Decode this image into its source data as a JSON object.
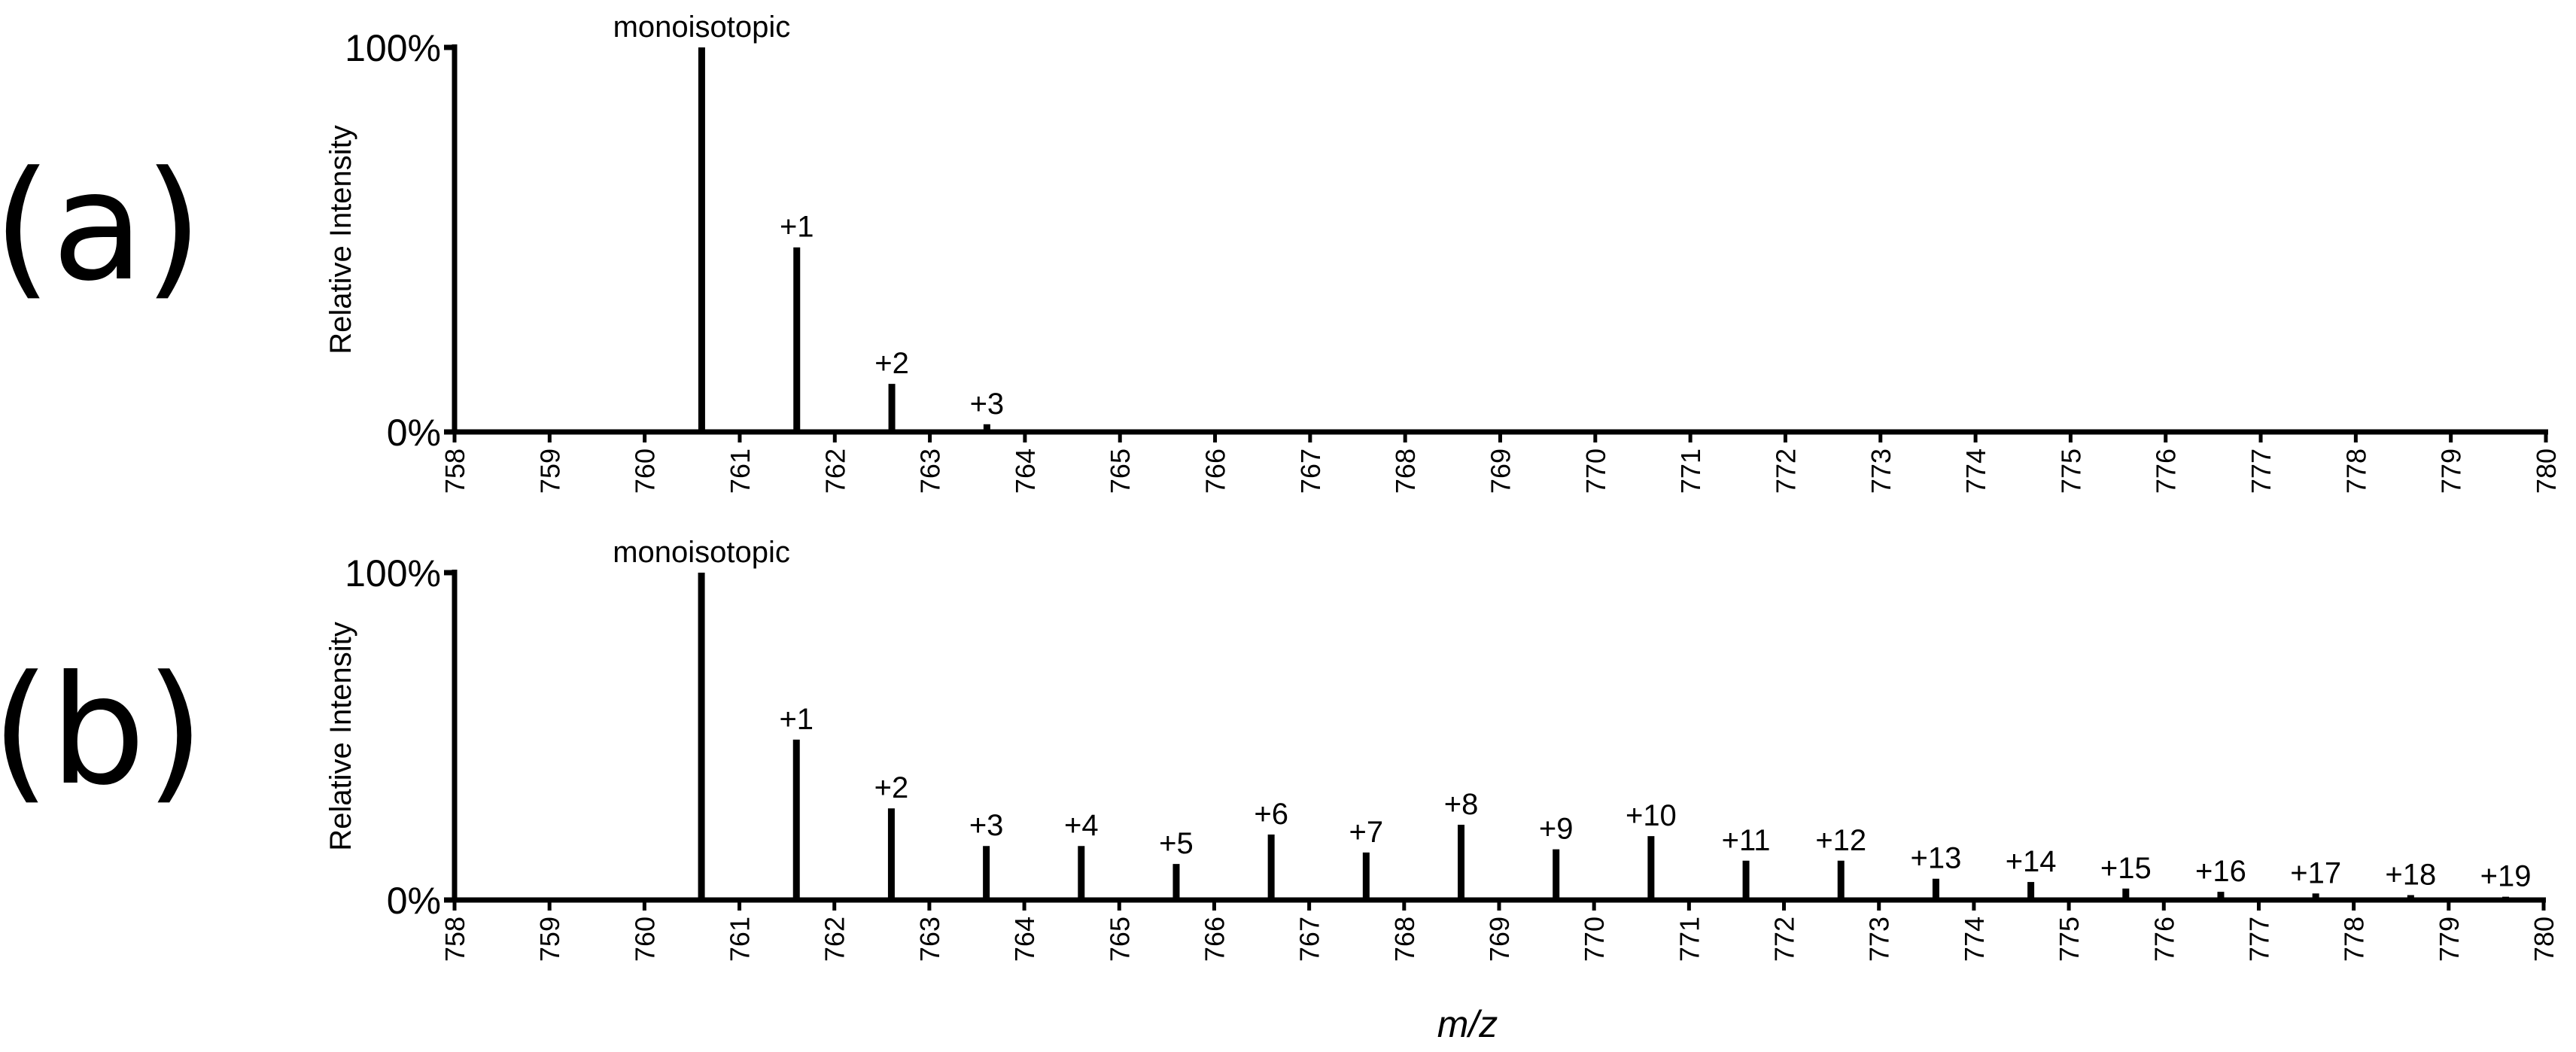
{
  "figure": {
    "xlabel": "m/z"
  },
  "chart_data": [
    {
      "type": "bar",
      "panel_label": "(a)",
      "title": "",
      "xlabel": "m/z",
      "ylabel": "Relative Intensity",
      "xlim": [
        758,
        780
      ],
      "ylim": [
        0,
        100
      ],
      "x_ticks": [
        "758",
        "759",
        "760",
        "761",
        "762",
        "763",
        "764",
        "765",
        "766",
        "767",
        "768",
        "769",
        "770",
        "771",
        "772",
        "773",
        "774",
        "775",
        "776",
        "777",
        "778",
        "779",
        "780"
      ],
      "y_ticks": [
        "0%",
        "100%"
      ],
      "peaks": [
        {
          "mz": 760.6,
          "intensity": 100,
          "label": "monoisotopic"
        },
        {
          "mz": 761.6,
          "intensity": 48,
          "label": "+1"
        },
        {
          "mz": 762.6,
          "intensity": 12.5,
          "label": "+2"
        },
        {
          "mz": 763.6,
          "intensity": 2,
          "label": "+3"
        },
        {
          "mz": 772.6,
          "intensity": 0.6,
          "label": ""
        }
      ]
    },
    {
      "type": "bar",
      "panel_label": "(b)",
      "title": "",
      "xlabel": "m/z",
      "ylabel": "Relative Intensity",
      "xlim": [
        758,
        780
      ],
      "ylim": [
        0,
        100
      ],
      "x_ticks": [
        "758",
        "759",
        "760",
        "761",
        "762",
        "763",
        "764",
        "765",
        "766",
        "767",
        "768",
        "769",
        "770",
        "771",
        "772",
        "773",
        "774",
        "775",
        "776",
        "777",
        "778",
        "779",
        "780"
      ],
      "y_ticks": [
        "0%",
        "100%"
      ],
      "peaks": [
        {
          "mz": 760.6,
          "intensity": 100,
          "label": "monoisotopic"
        },
        {
          "mz": 761.6,
          "intensity": 49,
          "label": "+1"
        },
        {
          "mz": 762.6,
          "intensity": 28,
          "label": "+2"
        },
        {
          "mz": 763.6,
          "intensity": 16.5,
          "label": "+3"
        },
        {
          "mz": 764.6,
          "intensity": 16.5,
          "label": "+4"
        },
        {
          "mz": 765.6,
          "intensity": 11,
          "label": "+5"
        },
        {
          "mz": 766.6,
          "intensity": 20,
          "label": "+6"
        },
        {
          "mz": 767.6,
          "intensity": 14.5,
          "label": "+7"
        },
        {
          "mz": 768.6,
          "intensity": 23,
          "label": "+8"
        },
        {
          "mz": 769.6,
          "intensity": 15.5,
          "label": "+9"
        },
        {
          "mz": 770.6,
          "intensity": 19.5,
          "label": "+10"
        },
        {
          "mz": 771.6,
          "intensity": 12,
          "label": "+11"
        },
        {
          "mz": 772.6,
          "intensity": 12,
          "label": "+12"
        },
        {
          "mz": 773.6,
          "intensity": 6.5,
          "label": "+13"
        },
        {
          "mz": 774.6,
          "intensity": 5.5,
          "label": "+14"
        },
        {
          "mz": 775.6,
          "intensity": 3.5,
          "label": "+15"
        },
        {
          "mz": 776.6,
          "intensity": 2.5,
          "label": "+16"
        },
        {
          "mz": 777.6,
          "intensity": 2,
          "label": "+17"
        },
        {
          "mz": 778.6,
          "intensity": 1.5,
          "label": "+18"
        },
        {
          "mz": 779.6,
          "intensity": 1,
          "label": "+19"
        }
      ]
    }
  ]
}
